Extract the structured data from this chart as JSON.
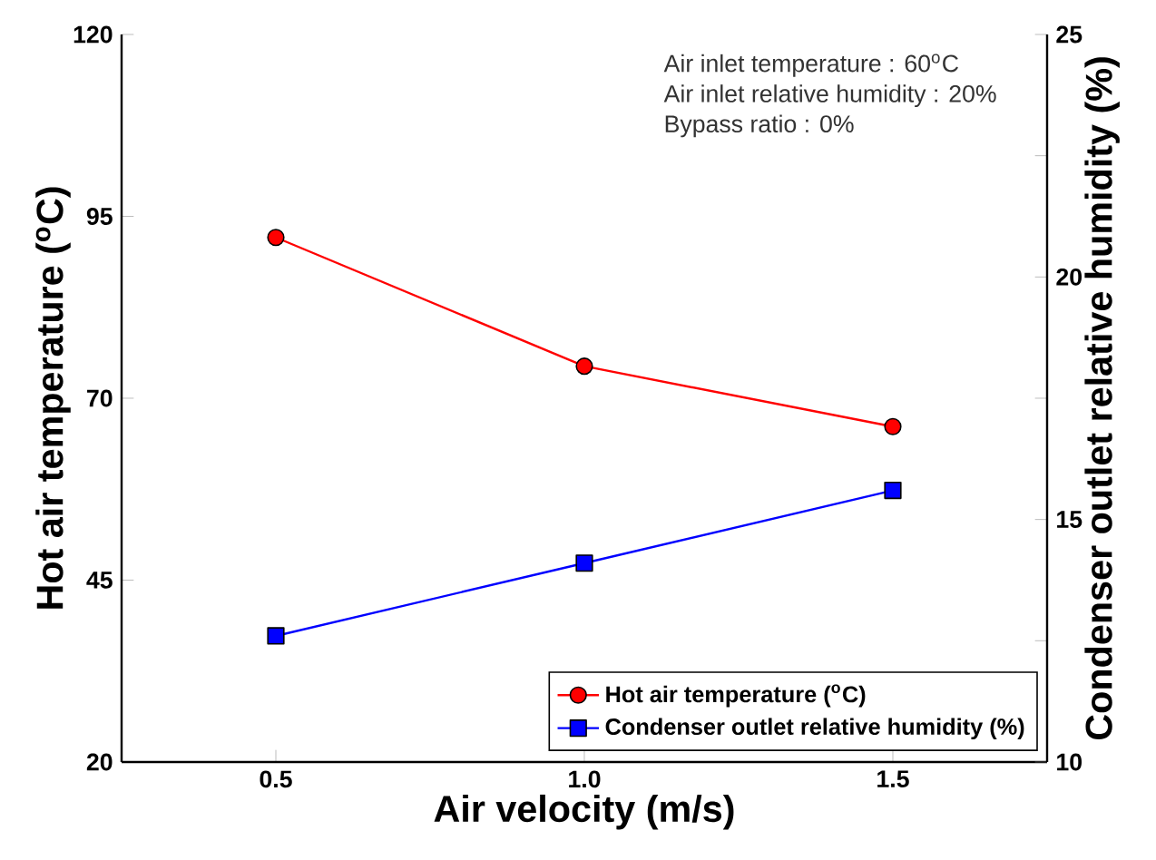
{
  "chart_data": {
    "type": "line",
    "xlabel": "Air velocity (m/s)",
    "ylabel": "Hot air temperature ($^{o}$C)",
    "y2label": "Condenser outlet relative humidity (%)",
    "x": [
      0.5,
      1.0,
      1.5
    ],
    "xlim": [
      0.25,
      1.75
    ],
    "xticks": [
      {
        "value": 0.5,
        "label": "0.5"
      },
      {
        "value": 1.0,
        "label": "1.0"
      },
      {
        "value": 1.5,
        "label": "1.5"
      }
    ],
    "ylim": [
      20,
      120
    ],
    "yticks": [
      20,
      45,
      70,
      95,
      120
    ],
    "y2lim": [
      10,
      25
    ],
    "y2ticks": [
      10,
      {
        "value": 12.5,
        "label": null
      },
      15,
      {
        "value": 17.5,
        "label": null
      },
      20,
      {
        "value": 22.5,
        "label": null
      },
      25
    ],
    "series": [
      {
        "name": "Hot air temperature ($^{o}$C)",
        "color": "#ff0000",
        "marker": "circle",
        "values": [
          92.1,
          74.4,
          66.1
        ]
      },
      {
        "name": "Condenser outlet relative humidity (%)",
        "color": "#0000ff",
        "marker": "square",
        "axis": "y2",
        "values": [
          12.6,
          14.1,
          15.6
        ]
      }
    ],
    "legend": "bottom right",
    "grid": false,
    "annotations": [
      "Air inlet temperature : 60$^{o}$C",
      "Air inlet relative humidity : 20%",
      "Bypass ratio : 0%"
    ]
  }
}
